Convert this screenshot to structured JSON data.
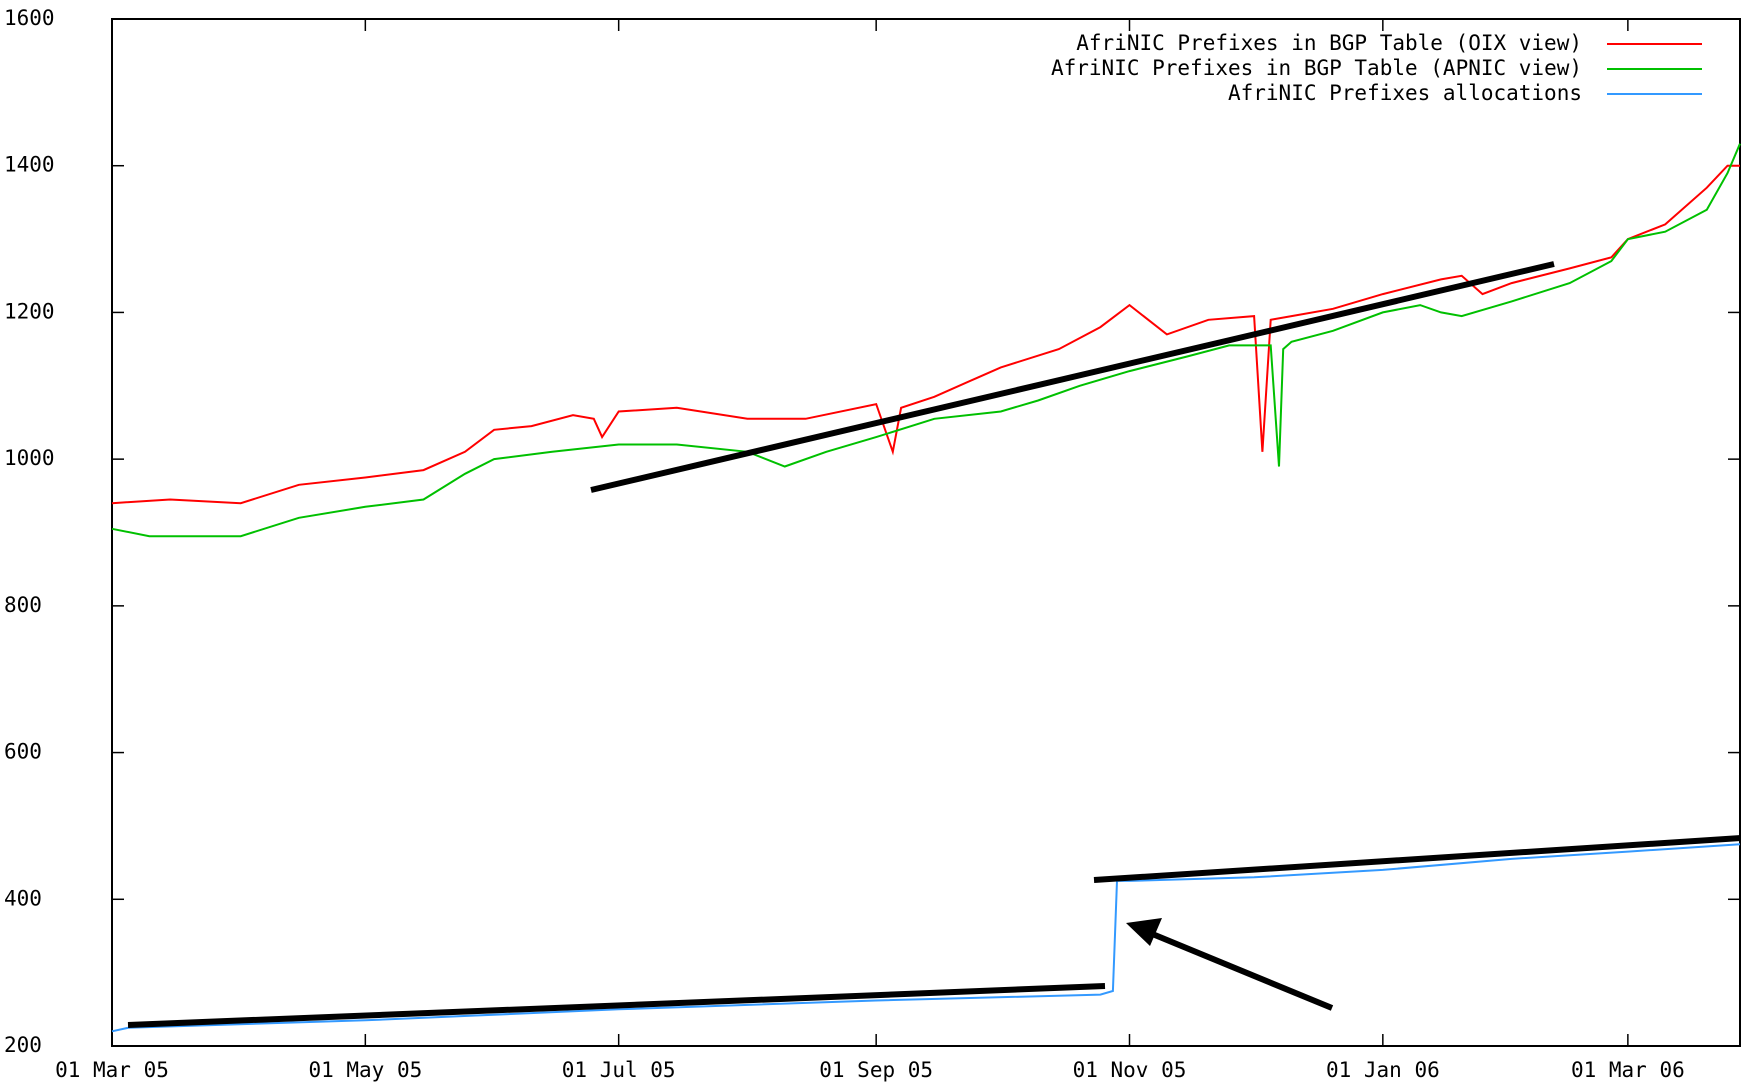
{
  "chart_data": {
    "type": "line",
    "xlim": [
      "2005-03-01",
      "2006-03-28"
    ],
    "xticks": [
      {
        "value": "2005-03-01",
        "label": "01 Mar 05"
      },
      {
        "value": "2005-05-01",
        "label": "01 May 05"
      },
      {
        "value": "2005-07-01",
        "label": "01 Jul 05"
      },
      {
        "value": "2005-09-01",
        "label": "01 Sep 05"
      },
      {
        "value": "2005-11-01",
        "label": "01 Nov 05"
      },
      {
        "value": "2006-01-01",
        "label": "01 Jan 06"
      },
      {
        "value": "2006-03-01",
        "label": "01 Mar 06"
      }
    ],
    "ylim": [
      200,
      1600
    ],
    "yticks": [
      200,
      400,
      600,
      800,
      1000,
      1200,
      1400,
      1600
    ],
    "legend": "top-right",
    "series": [
      {
        "name": "AfriNIC Prefixes in BGP Table (OIX view)",
        "color": "#ff0000",
        "x": [
          "2005-03-01",
          "2005-03-15",
          "2005-04-01",
          "2005-04-15",
          "2005-05-01",
          "2005-05-15",
          "2005-05-25",
          "2005-06-01",
          "2005-06-10",
          "2005-06-20",
          "2005-06-25",
          "2005-06-27",
          "2005-07-01",
          "2005-07-15",
          "2005-08-01",
          "2005-08-15",
          "2005-09-01",
          "2005-09-05",
          "2005-09-07",
          "2005-09-15",
          "2005-09-25",
          "2005-10-01",
          "2005-10-15",
          "2005-10-25",
          "2005-11-01",
          "2005-11-10",
          "2005-11-20",
          "2005-12-01",
          "2005-12-03",
          "2005-12-05",
          "2005-12-10",
          "2005-12-20",
          "2006-01-01",
          "2006-01-15",
          "2006-01-20",
          "2006-01-25",
          "2006-02-01",
          "2006-02-15",
          "2006-02-25",
          "2006-03-01",
          "2006-03-10",
          "2006-03-20",
          "2006-03-25",
          "2006-03-28"
        ],
        "values": [
          940,
          945,
          940,
          965,
          975,
          985,
          1010,
          1040,
          1045,
          1060,
          1055,
          1030,
          1065,
          1070,
          1055,
          1055,
          1075,
          1010,
          1070,
          1085,
          1110,
          1125,
          1150,
          1180,
          1210,
          1170,
          1190,
          1195,
          1010,
          1190,
          1195,
          1205,
          1225,
          1245,
          1250,
          1225,
          1240,
          1260,
          1275,
          1300,
          1320,
          1370,
          1400,
          1400
        ]
      },
      {
        "name": "AfriNIC Prefixes in BGP Table (APNIC view)",
        "color": "#00c000",
        "x": [
          "2005-03-01",
          "2005-03-10",
          "2005-04-01",
          "2005-04-15",
          "2005-05-01",
          "2005-05-15",
          "2005-05-25",
          "2005-06-01",
          "2005-06-15",
          "2005-07-01",
          "2005-07-15",
          "2005-08-01",
          "2005-08-10",
          "2005-08-20",
          "2005-09-01",
          "2005-09-15",
          "2005-10-01",
          "2005-10-10",
          "2005-10-20",
          "2005-11-01",
          "2005-11-15",
          "2005-11-25",
          "2005-12-05",
          "2005-12-07",
          "2005-12-08",
          "2005-12-10",
          "2005-12-20",
          "2006-01-01",
          "2006-01-10",
          "2006-01-15",
          "2006-01-20",
          "2006-02-01",
          "2006-02-15",
          "2006-02-25",
          "2006-03-01",
          "2006-03-10",
          "2006-03-20",
          "2006-03-25",
          "2006-03-28"
        ],
        "values": [
          905,
          895,
          895,
          920,
          935,
          945,
          980,
          1000,
          1010,
          1020,
          1020,
          1010,
          990,
          1010,
          1030,
          1055,
          1065,
          1080,
          1100,
          1120,
          1140,
          1155,
          1155,
          990,
          1150,
          1160,
          1175,
          1200,
          1210,
          1200,
          1195,
          1215,
          1240,
          1270,
          1300,
          1310,
          1340,
          1390,
          1430
        ]
      },
      {
        "name": "AfriNIC Prefixes allocations",
        "color": "#3399ff",
        "x": [
          "2005-03-01",
          "2005-03-05",
          "2005-05-01",
          "2005-07-01",
          "2005-09-01",
          "2005-10-25",
          "2005-10-28",
          "2005-10-29",
          "2005-11-01",
          "2005-12-01",
          "2006-01-01",
          "2006-02-01",
          "2006-03-01",
          "2006-03-28"
        ],
        "values": [
          220,
          225,
          235,
          250,
          262,
          270,
          275,
          425,
          425,
          430,
          440,
          455,
          465,
          475
        ]
      }
    ]
  }
}
